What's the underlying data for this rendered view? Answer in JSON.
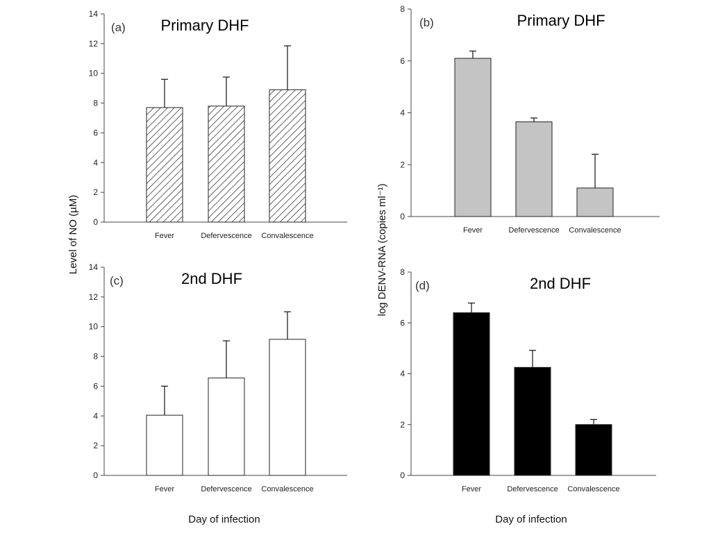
{
  "figure": {
    "ylabel_left": "Level of NO (µM)",
    "ylabel_right": "log DENV-RNA (copies ml⁻¹)",
    "xlabel_left": "Day of infection",
    "xlabel_right": "Day of infection"
  },
  "chart_data": [
    {
      "panel": "(a)",
      "type": "bar",
      "title": "Primary DHF",
      "categories": [
        "Fever",
        "Defervescence",
        "Convalescence"
      ],
      "values": [
        7.7,
        7.8,
        8.9
      ],
      "errors": [
        1.9,
        1.95,
        2.95
      ],
      "ylim": [
        0,
        14
      ],
      "yticks": [
        0,
        2,
        4,
        6,
        8,
        10,
        12,
        14
      ],
      "fill": "hatch",
      "ylabel": "Level of NO (µM)"
    },
    {
      "panel": "(b)",
      "type": "bar",
      "title": "Primary DHF",
      "categories": [
        "Fever",
        "Defervescence",
        "Convalescence"
      ],
      "values": [
        6.1,
        3.65,
        1.1
      ],
      "errors": [
        0.28,
        0.15,
        1.3
      ],
      "ylim": [
        0,
        8
      ],
      "yticks": [
        0,
        2,
        4,
        6,
        8
      ],
      "fill": "#c4c4c4",
      "ylabel": "log DENV-RNA (copies ml⁻¹)"
    },
    {
      "panel": "(c)",
      "type": "bar",
      "title": "2nd DHF",
      "categories": [
        "Fever",
        "Defervescence",
        "Convalescence"
      ],
      "values": [
        4.05,
        6.55,
        9.15
      ],
      "errors": [
        1.95,
        2.5,
        1.85
      ],
      "ylim": [
        0,
        14
      ],
      "yticks": [
        0,
        2,
        4,
        6,
        8,
        10,
        12,
        14
      ],
      "fill": "#ffffff",
      "xlabel": "Day of infection"
    },
    {
      "panel": "(d)",
      "type": "bar",
      "title": "2nd DHF",
      "categories": [
        "Fever",
        "Defervescence",
        "Convalescence"
      ],
      "values": [
        6.4,
        4.25,
        2.0
      ],
      "errors": [
        0.38,
        0.67,
        0.2
      ],
      "ylim": [
        0,
        8
      ],
      "yticks": [
        0,
        2,
        4,
        6,
        8
      ],
      "fill": "#000000",
      "xlabel": "Day of infection"
    }
  ]
}
